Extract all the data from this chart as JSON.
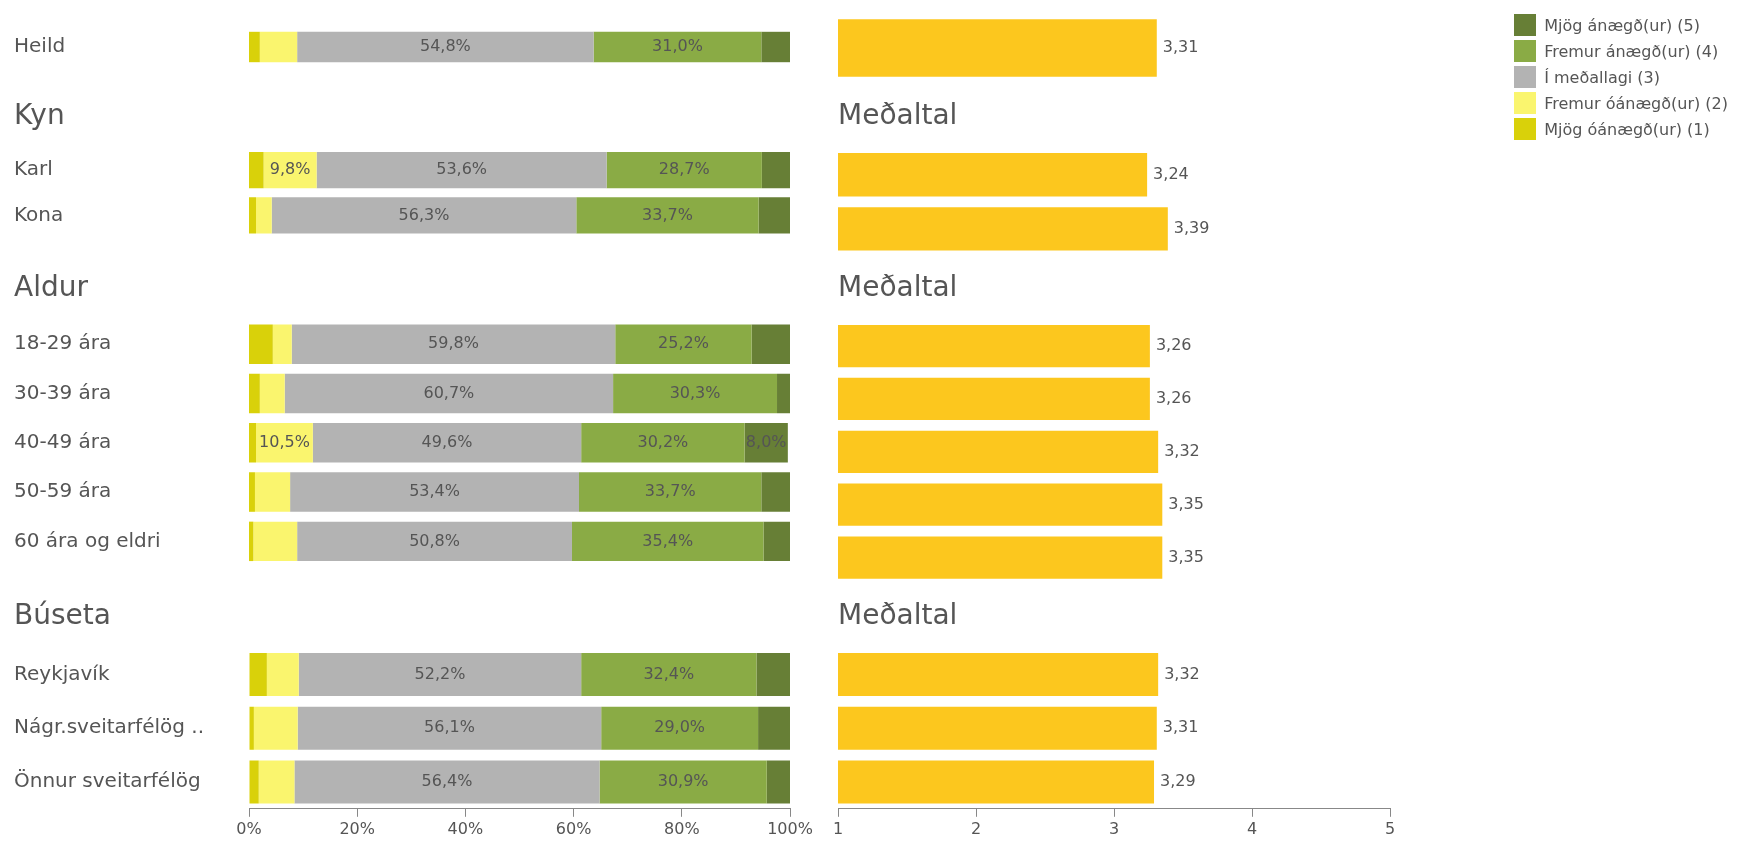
{
  "chart_data": [
    {
      "type": "bar",
      "orientation": "horizontal",
      "stacked": true,
      "legend": "right",
      "tick_labels": "y",
      "categories": [
        "Heild"
      ],
      "xlim": [
        0,
        100
      ],
      "series": [
        {
          "name": "Mjög óánægð(ur) (1)",
          "color": "#d9d10a",
          "values": [
            2.0
          ],
          "value_labels": [
            null
          ]
        },
        {
          "name": "Fremur óánægð(ur) (2)",
          "color": "#faf56e",
          "values": [
            6.9
          ],
          "value_labels": [
            null
          ]
        },
        {
          "name": "Í meðallagi (3)",
          "color": "#b3b3b3",
          "values": [
            54.8
          ],
          "value_labels": [
            "54,8%"
          ]
        },
        {
          "name": "Fremur ánægð(ur) (4)",
          "color": "#8aab45",
          "values": [
            31.0
          ],
          "value_labels": [
            "31,0%"
          ]
        },
        {
          "name": "Mjög ánægð(ur) (5)",
          "color": "#677f36",
          "values": [
            5.3
          ],
          "value_labels": [
            null
          ]
        }
      ]
    },
    {
      "type": "bar",
      "orientation": "horizontal",
      "tick_labels": false,
      "categories": [
        null
      ],
      "xlim": [
        1,
        5
      ],
      "color": "#fcc71e",
      "values": [
        3.31
      ],
      "value_labels": [
        "3,31"
      ]
    },
    {
      "type": "bar",
      "orientation": "horizontal",
      "stacked": true,
      "title": "Kyn",
      "tick_labels": "y",
      "categories": [
        "Karl",
        "Kona"
      ],
      "xlim": [
        0,
        100
      ],
      "series": [
        {
          "color": "#d9d10a",
          "values": [
            2.7,
            1.3
          ],
          "value_labels": [
            null,
            null
          ]
        },
        {
          "color": "#faf56e",
          "values": [
            9.8,
            2.9
          ],
          "value_labels": [
            "9,8%",
            null
          ]
        },
        {
          "color": "#b3b3b3",
          "values": [
            53.6,
            56.3
          ],
          "value_labels": [
            "53,6%",
            "56,3%"
          ]
        },
        {
          "color": "#8aab45",
          "values": [
            28.7,
            33.7
          ],
          "value_labels": [
            "28,7%",
            "33,7%"
          ]
        },
        {
          "color": "#677f36",
          "values": [
            5.2,
            5.8
          ],
          "value_labels": [
            null,
            null
          ]
        }
      ]
    },
    {
      "type": "bar",
      "orientation": "horizontal",
      "title": "Meðaltal",
      "tick_labels": false,
      "categories": [
        null,
        null
      ],
      "xlim": [
        1,
        5
      ],
      "color": "#fcc71e",
      "values": [
        3.24,
        3.39
      ],
      "value_labels": [
        "3,24",
        "3,39"
      ]
    },
    {
      "type": "bar",
      "orientation": "horizontal",
      "stacked": true,
      "title": "Aldur",
      "tick_labels": "y",
      "categories": [
        "18-29 ára",
        "30-39 ára",
        "40-49 ára",
        "50-59 ára",
        "60 ára og eldri"
      ],
      "xlim": [
        0,
        100
      ],
      "series": [
        {
          "color": "#d9d10a",
          "values": [
            4.4,
            2.0,
            1.3,
            1.1,
            0.8
          ],
          "value_labels": [
            null,
            null,
            null,
            null,
            null
          ]
        },
        {
          "color": "#faf56e",
          "values": [
            3.5,
            4.6,
            10.5,
            6.5,
            8.1
          ],
          "value_labels": [
            null,
            null,
            "10,5%",
            null,
            null
          ]
        },
        {
          "color": "#b3b3b3",
          "values": [
            59.8,
            60.7,
            49.6,
            53.4,
            50.8
          ],
          "value_labels": [
            "59,8%",
            "60,7%",
            "49,6%",
            "53,4%",
            "50,8%"
          ]
        },
        {
          "color": "#8aab45",
          "values": [
            25.2,
            30.3,
            30.2,
            33.7,
            35.4
          ],
          "value_labels": [
            "25,2%",
            "30,3%",
            "30,2%",
            "33,7%",
            "35,4%"
          ]
        },
        {
          "color": "#677f36",
          "values": [
            7.1,
            2.4,
            8.0,
            5.3,
            4.9
          ],
          "value_labels": [
            null,
            null,
            "8,0%",
            null,
            null
          ]
        }
      ]
    },
    {
      "type": "bar",
      "orientation": "horizontal",
      "title": "Meðaltal",
      "tick_labels": false,
      "categories": [
        null,
        null,
        null,
        null,
        null
      ],
      "xlim": [
        1,
        5
      ],
      "color": "#fcc71e",
      "values": [
        3.26,
        3.26,
        3.32,
        3.35,
        3.35
      ],
      "value_labels": [
        "3,26",
        "3,26",
        "3,32",
        "3,35",
        "3,35"
      ]
    },
    {
      "type": "bar",
      "orientation": "horizontal",
      "stacked": true,
      "title": "Búseta",
      "categories": [
        "Reykjavík",
        "Nágr.sveitarfélög ..",
        "Önnur sveitarfélög"
      ],
      "xlim": [
        0,
        100
      ],
      "xticks": [
        {
          "value": 0,
          "label": "0%"
        },
        {
          "value": 20,
          "label": "20%"
        },
        {
          "value": 40,
          "label": "40%"
        },
        {
          "value": 60,
          "label": "60%"
        },
        {
          "value": 80,
          "label": "80%"
        },
        {
          "value": 100,
          "label": "100%"
        }
      ],
      "series": [
        {
          "color": "#d9d10a",
          "values": [
            3.3,
            0.9,
            1.8
          ],
          "value_labels": [
            null,
            null,
            null
          ]
        },
        {
          "color": "#faf56e",
          "values": [
            5.9,
            8.1,
            6.6
          ],
          "value_labels": [
            null,
            null,
            null
          ]
        },
        {
          "color": "#b3b3b3",
          "values": [
            52.2,
            56.1,
            56.4
          ],
          "value_labels": [
            "52,2%",
            "56,1%",
            "56,4%"
          ]
        },
        {
          "color": "#8aab45",
          "values": [
            32.4,
            29.0,
            30.9
          ],
          "value_labels": [
            "32,4%",
            "29,0%",
            "30,9%"
          ]
        },
        {
          "color": "#677f36",
          "values": [
            6.2,
            5.9,
            4.3
          ],
          "value_labels": [
            null,
            null,
            null
          ]
        }
      ]
    },
    {
      "type": "bar",
      "orientation": "horizontal",
      "title": "Meðaltal",
      "tick_labels": "x",
      "categories": [
        null,
        null,
        null
      ],
      "xlim": [
        1,
        5
      ],
      "xticks": [
        1,
        2,
        3,
        4,
        5
      ],
      "color": "#fcc71e",
      "values": [
        3.32,
        3.31,
        3.29
      ],
      "value_labels": [
        "3,32",
        "3,31",
        "3,29"
      ]
    }
  ]
}
